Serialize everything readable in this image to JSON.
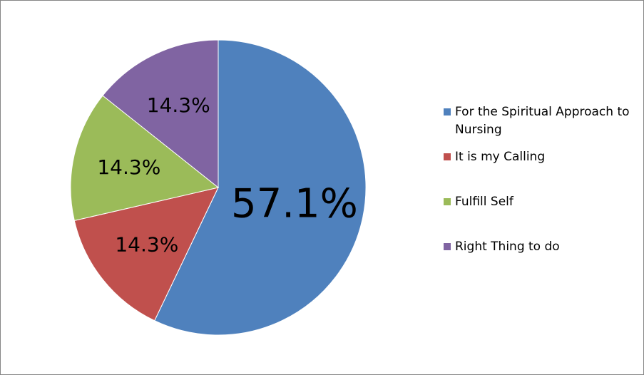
{
  "chart_data": {
    "type": "pie",
    "title": "",
    "slices": [
      {
        "label": "For the Spiritual Approach to Nursing",
        "value": 57.1,
        "display": "57.1%",
        "color": "#4F81BD"
      },
      {
        "label": "It is my Calling",
        "value": 14.3,
        "display": "14.3%",
        "color": "#C0504D"
      },
      {
        "label": "Fulfill Self",
        "value": 14.3,
        "display": "14.3%",
        "color": "#9BBB59"
      },
      {
        "label": "Right Thing to do",
        "value": 14.3,
        "display": "14.3%",
        "color": "#8064A2"
      }
    ],
    "legend_position": "right",
    "start_angle": "top",
    "direction": "clockwise"
  }
}
